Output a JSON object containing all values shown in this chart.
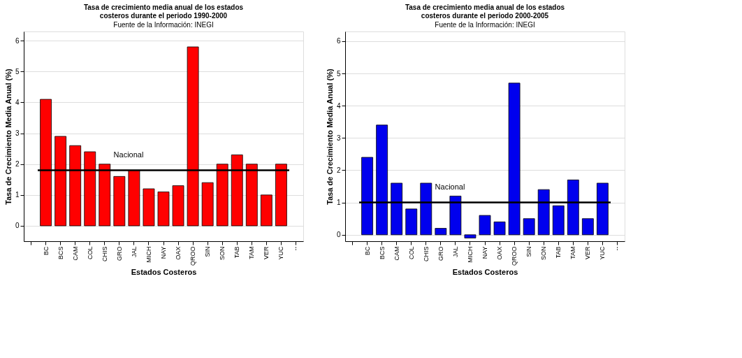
{
  "chart_data": [
    {
      "type": "bar",
      "title": [
        "Tasa de crecimiento media anual de los estados",
        "costeros durante el periodo 1990-2000"
      ],
      "subtitle": "Fuente de la Información: INEGI",
      "xlabel": "Estados Costeros",
      "ylabel": "Tasa de Crecimiento Media Anual (%)",
      "categories": [
        null,
        "BC",
        "BCS",
        "CAM",
        "COL",
        "CHIS",
        "GRO",
        "JAL",
        "MICH",
        "NAY",
        "OAX",
        "QROO",
        "SIN",
        "SON",
        "TAB",
        "TAM",
        "VER",
        "YUC",
        "--"
      ],
      "series": [
        {
          "color": "#ff0000",
          "values": [
            null,
            4.1,
            2.9,
            2.6,
            2.4,
            2.0,
            1.6,
            1.8,
            1.2,
            1.1,
            1.3,
            5.8,
            1.4,
            2.0,
            2.3,
            2.0,
            1.0,
            2.0,
            null
          ]
        }
      ],
      "ylim": [
        -0.5,
        6.3
      ],
      "yticks": [
        0,
        1,
        2,
        3,
        4,
        5,
        6
      ],
      "grid": "y",
      "legend": false,
      "ref_lines": [
        {
          "axis": "y",
          "value": 1.8,
          "label": "Nacional",
          "color": "#000000"
        }
      ]
    },
    {
      "type": "bar",
      "title": [
        "Tasa de crecimiento media anual de los estados",
        "costeros durante el periodo 2000-2005"
      ],
      "subtitle": "Fuente de la Información: INEGI",
      "xlabel": "Estados Costeros",
      "ylabel": "Tasa de Crecimiento Media Anual (%)",
      "categories": [
        null,
        "BC",
        "BCS",
        "CAM",
        "COL",
        "CHIS",
        "GRO",
        "JAL",
        "MICH",
        "NAY",
        "OAX",
        "QROO",
        "SIN",
        "SON",
        "TAB",
        "TAM",
        "VER",
        "YUC",
        "--"
      ],
      "series": [
        {
          "color": "#0000ee",
          "values": [
            null,
            2.4,
            3.4,
            1.6,
            0.8,
            1.6,
            0.2,
            1.2,
            -0.1,
            0.6,
            0.4,
            4.7,
            0.5,
            1.4,
            0.9,
            1.7,
            0.5,
            1.6,
            null
          ]
        }
      ],
      "ylim": [
        -0.2,
        6.3
      ],
      "yticks": [
        0,
        1,
        2,
        3,
        4,
        5,
        6
      ],
      "grid": "y",
      "legend": false,
      "ref_lines": [
        {
          "axis": "y",
          "value": 1.0,
          "label": "Nacional",
          "color": "#000000"
        }
      ]
    }
  ]
}
